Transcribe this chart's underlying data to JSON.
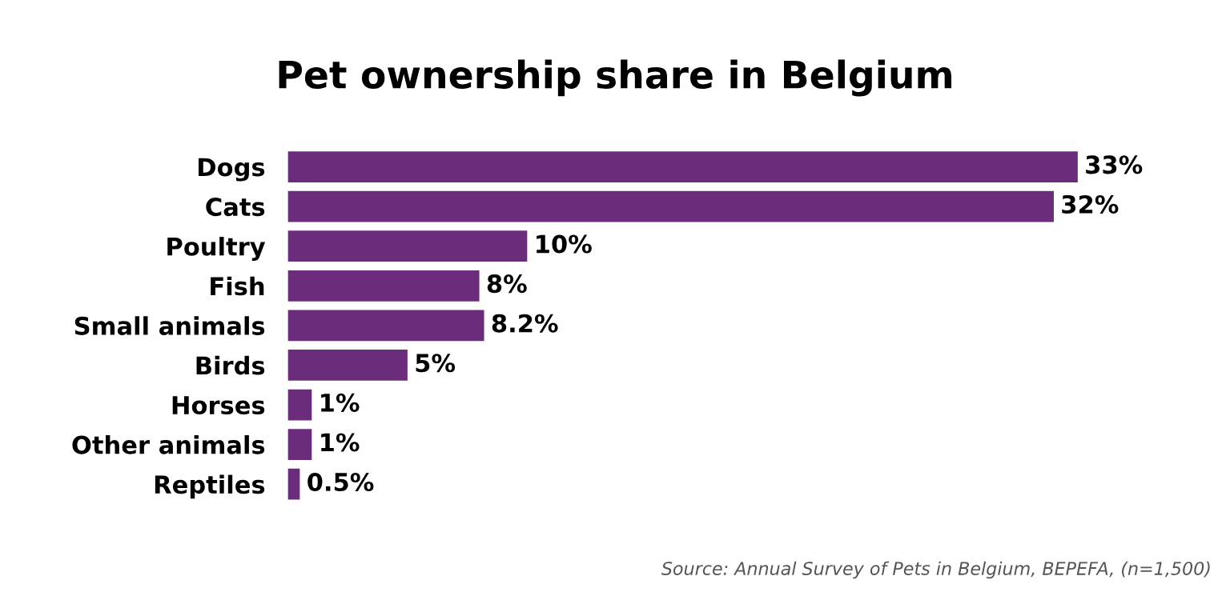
{
  "chart_data": {
    "type": "bar",
    "orientation": "horizontal",
    "title": "Pet ownership share in Belgium",
    "categories": [
      "Dogs",
      "Cats",
      "Poultry",
      "Fish",
      "Small animals",
      "Birds",
      "Horses",
      "Other animals",
      "Reptiles"
    ],
    "values": [
      33,
      32,
      10,
      8,
      8.2,
      5,
      1,
      1,
      0.5
    ],
    "value_labels": [
      "33%",
      "32%",
      "10%",
      "8%",
      "8.2%",
      "5%",
      "1%",
      "1%",
      "0.5%"
    ],
    "color": "#6b2d7b",
    "grid": false,
    "legend": false,
    "annotations": [
      "Source: Annual Survey of Pets in Belgium, BEPEFA, (n=1,500)"
    ]
  }
}
